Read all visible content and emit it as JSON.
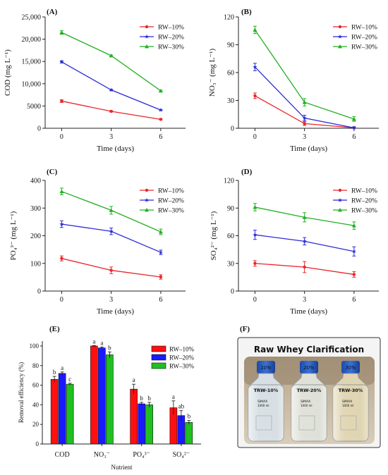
{
  "chart_data": [
    {
      "panel_label": "(A)",
      "type": "line",
      "x": [
        0,
        3,
        6
      ],
      "xticks": [
        0,
        3,
        6
      ],
      "xlabel": "Time (days)",
      "ylabel": "COD (mg L⁻¹)",
      "ylim": [
        0,
        25000
      ],
      "yticks": [
        0,
        5000,
        10000,
        15000,
        20000,
        25000
      ],
      "ytick_labels": [
        "0",
        "5000",
        "10,000",
        "15,000",
        "20,000",
        "25,000"
      ],
      "legend_position": "top-right",
      "grid": false,
      "series": [
        {
          "name": "RW–10%",
          "color": "#e8262b",
          "marker": "circle",
          "values": [
            6100,
            3800,
            2000
          ],
          "err": [
            300,
            150,
            100
          ]
        },
        {
          "name": "RW–20%",
          "color": "#2b2bd9",
          "marker": "star",
          "values": [
            14900,
            8600,
            4100
          ],
          "err": [
            250,
            150,
            120
          ]
        },
        {
          "name": "RW–30%",
          "color": "#22b022",
          "marker": "triangle",
          "values": [
            21500,
            16300,
            8400
          ],
          "err": [
            400,
            150,
            150
          ]
        }
      ]
    },
    {
      "panel_label": "(B)",
      "type": "line",
      "x": [
        0,
        3,
        6
      ],
      "xticks": [
        0,
        3,
        6
      ],
      "xlabel": "Time (days)",
      "ylabel": "NO₃⁻ (mg L⁻¹)",
      "ylim": [
        0,
        120
      ],
      "yticks": [
        0,
        30,
        60,
        90,
        120
      ],
      "ytick_labels": [
        "0",
        "30",
        "60",
        "90",
        "120"
      ],
      "legend_position": "top-right",
      "grid": false,
      "series": [
        {
          "name": "RW–10%",
          "color": "#e8262b",
          "marker": "circle",
          "values": [
            35,
            5,
            0.5
          ],
          "err": [
            3,
            2,
            1
          ]
        },
        {
          "name": "RW–20%",
          "color": "#2b2bd9",
          "marker": "star",
          "values": [
            66,
            11,
            0.5
          ],
          "err": [
            4,
            3,
            1
          ]
        },
        {
          "name": "RW–30%",
          "color": "#22b022",
          "marker": "triangle",
          "values": [
            106,
            28,
            10
          ],
          "err": [
            4,
            4,
            2.5
          ]
        }
      ]
    },
    {
      "panel_label": "(C)",
      "type": "line",
      "x": [
        0,
        3,
        6
      ],
      "xticks": [
        0,
        3,
        6
      ],
      "xlabel": "Time (days)",
      "ylabel": "PO₄³⁻ (mg L⁻¹)",
      "ylim": [
        0,
        400
      ],
      "yticks": [
        0,
        100,
        200,
        300,
        400
      ],
      "ytick_labels": [
        "0",
        "100",
        "200",
        "300",
        "400"
      ],
      "legend_position": "top-right",
      "grid": false,
      "series": [
        {
          "name": "RW–10%",
          "color": "#e8262b",
          "marker": "circle",
          "values": [
            118,
            75,
            51
          ],
          "err": [
            9,
            12,
            8
          ]
        },
        {
          "name": "RW–20%",
          "color": "#2b2bd9",
          "marker": "star",
          "values": [
            242,
            216,
            140
          ],
          "err": [
            12,
            12,
            8
          ]
        },
        {
          "name": "RW–30%",
          "color": "#22b022",
          "marker": "triangle",
          "values": [
            360,
            292,
            214
          ],
          "err": [
            12,
            14,
            10
          ]
        }
      ]
    },
    {
      "panel_label": "(D)",
      "type": "line",
      "x": [
        0,
        3,
        6
      ],
      "xticks": [
        0,
        3,
        6
      ],
      "xlabel": "Time (days)",
      "ylabel": "SO₄²⁻ (mg L⁻¹)",
      "ylim": [
        0,
        120
      ],
      "yticks": [
        0,
        30,
        60,
        90,
        120
      ],
      "ytick_labels": [
        "0",
        "30",
        "60",
        "90",
        "120"
      ],
      "legend_position": "top-right",
      "grid": false,
      "series": [
        {
          "name": "RW–10%",
          "color": "#e8262b",
          "marker": "circle",
          "values": [
            30,
            26,
            18
          ],
          "err": [
            3,
            6,
            3
          ]
        },
        {
          "name": "RW–20%",
          "color": "#2b2bd9",
          "marker": "star",
          "values": [
            61,
            54,
            43
          ],
          "err": [
            5,
            4,
            5
          ]
        },
        {
          "name": "RW–30%",
          "color": "#22b022",
          "marker": "triangle",
          "values": [
            91,
            80,
            71
          ],
          "err": [
            4,
            5,
            4
          ]
        }
      ]
    },
    {
      "panel_label": "(E)",
      "type": "bar",
      "categories": [
        "COD",
        "NO₃⁻",
        "PO₄³⁻",
        "SO₄²⁻"
      ],
      "xlabel": "Nutrient",
      "ylabel": "Removal efficiency (%)",
      "ylim": [
        0,
        105
      ],
      "yticks": [
        0,
        20,
        40,
        60,
        80,
        100
      ],
      "ytick_labels": [
        "0",
        "20",
        "40",
        "60",
        "80",
        "100"
      ],
      "legend_position": "top-right",
      "grid": false,
      "series": [
        {
          "name": "RW–10%",
          "color": "#ff1010",
          "values": [
            66,
            100,
            56,
            37
          ],
          "err": [
            3,
            0.5,
            5,
            7
          ],
          "sig": [
            "b",
            "a",
            "a",
            "a"
          ]
        },
        {
          "name": "RW–20%",
          "color": "#1a1aff",
          "values": [
            72,
            98,
            41,
            29
          ],
          "err": [
            1.5,
            1,
            1.5,
            5
          ],
          "sig": [
            "a",
            "a",
            "b",
            "ab"
          ]
        },
        {
          "name": "RW–30%",
          "color": "#1fc01f",
          "values": [
            61,
            91,
            40,
            22
          ],
          "err": [
            1,
            3,
            2.5,
            2
          ],
          "sig": [
            "c",
            "b",
            "b",
            "b"
          ]
        }
      ]
    }
  ],
  "photo_panel": {
    "panel_label": "(F)",
    "title": "Raw Whey Clarification",
    "bottles": [
      {
        "cap_text": "10%",
        "label": "TRW-10%",
        "brand": "SIMAX",
        "volume": "1000 ml",
        "liquid_color": "#d7dfe4"
      },
      {
        "cap_text": "20%",
        "label": "TRW-20%",
        "brand": "SIMAX",
        "volume": "1000 ml",
        "liquid_color": "#dfe1d8"
      },
      {
        "cap_text": "30%",
        "label": "TRW-30%",
        "brand": "SIMAX",
        "volume": "1000 ml",
        "liquid_color": "#e0d5b2"
      }
    ]
  }
}
